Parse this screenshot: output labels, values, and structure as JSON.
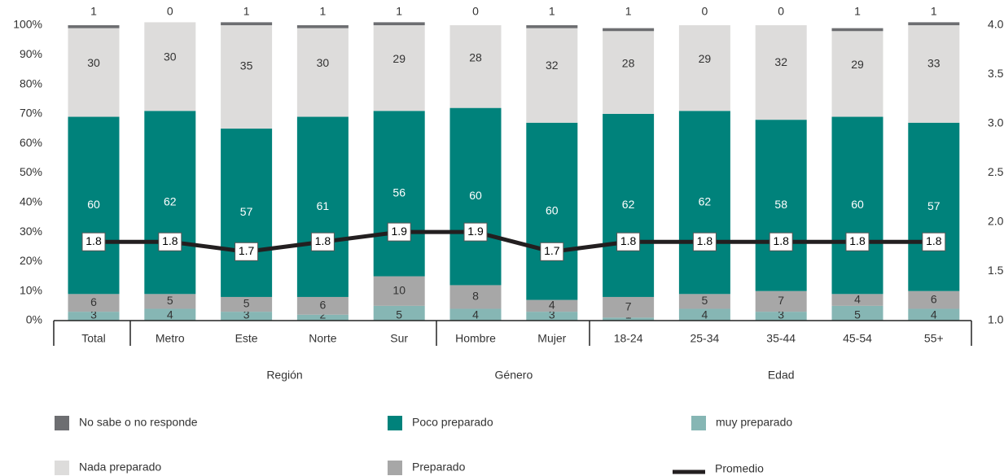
{
  "chart_data": {
    "type": "stacked_bar_line",
    "categories": [
      "Total",
      "Metro",
      "Este",
      "Norte",
      "Sur",
      "Hombre",
      "Mujer",
      "18-24",
      "25-34",
      "35-44",
      "45-54",
      "55+"
    ],
    "groups": [
      "Región",
      "Género",
      "Edad"
    ],
    "series": [
      {
        "name": "muy preparado",
        "color": "#86b6b4",
        "values": [
          3,
          4,
          3,
          2,
          5,
          4,
          3,
          1,
          4,
          3,
          5,
          4
        ]
      },
      {
        "name": "Preparado",
        "color": "#a7a7a7",
        "values": [
          6,
          5,
          5,
          6,
          10,
          8,
          4,
          7,
          5,
          7,
          4,
          6
        ]
      },
      {
        "name": "Poco preparado",
        "color": "#00827b",
        "values": [
          60,
          62,
          57,
          61,
          56,
          60,
          60,
          62,
          62,
          58,
          60,
          57
        ]
      },
      {
        "name": "Nada preparado",
        "color": "#dddcdb",
        "values": [
          30,
          30,
          35,
          30,
          29,
          28,
          32,
          28,
          29,
          32,
          29,
          33
        ]
      },
      {
        "name": "No sabe o no responde",
        "color": "#6d6e71",
        "values": [
          1,
          0,
          1,
          1,
          1,
          0,
          1,
          1,
          0,
          0,
          1,
          1
        ]
      },
      {
        "name": "Promedio",
        "color": "#231f20",
        "axis": "y2",
        "type": "line",
        "values": [
          1.8,
          1.8,
          1.7,
          1.8,
          1.9,
          1.9,
          1.7,
          1.8,
          1.8,
          1.8,
          1.8,
          1.8
        ]
      }
    ],
    "ylim": [
      0,
      100
    ],
    "yticks": [
      {
        "value": 0,
        "label": "0%"
      },
      {
        "value": 10,
        "label": "10%"
      },
      {
        "value": 20,
        "label": "20%"
      },
      {
        "value": 30,
        "label": "30%"
      },
      {
        "value": 40,
        "label": "40%"
      },
      {
        "value": 50,
        "label": "50%"
      },
      {
        "value": 60,
        "label": "60%"
      },
      {
        "value": 70,
        "label": "70%"
      },
      {
        "value": 80,
        "label": "80%"
      },
      {
        "value": 90,
        "label": "90%"
      },
      {
        "value": 100,
        "label": "100%"
      }
    ],
    "y2lim": [
      1,
      4
    ],
    "y2ticks": [
      {
        "value": 1,
        "label": "1.0"
      },
      {
        "value": 1.5,
        "label": "1.5"
      },
      {
        "value": 2,
        "label": "2.0"
      },
      {
        "value": 2.5,
        "label": "2.5"
      },
      {
        "value": 3,
        "label": "3.0"
      },
      {
        "value": 3.5,
        "label": "3.5"
      },
      {
        "value": 4,
        "label": "4.0"
      }
    ]
  }
}
